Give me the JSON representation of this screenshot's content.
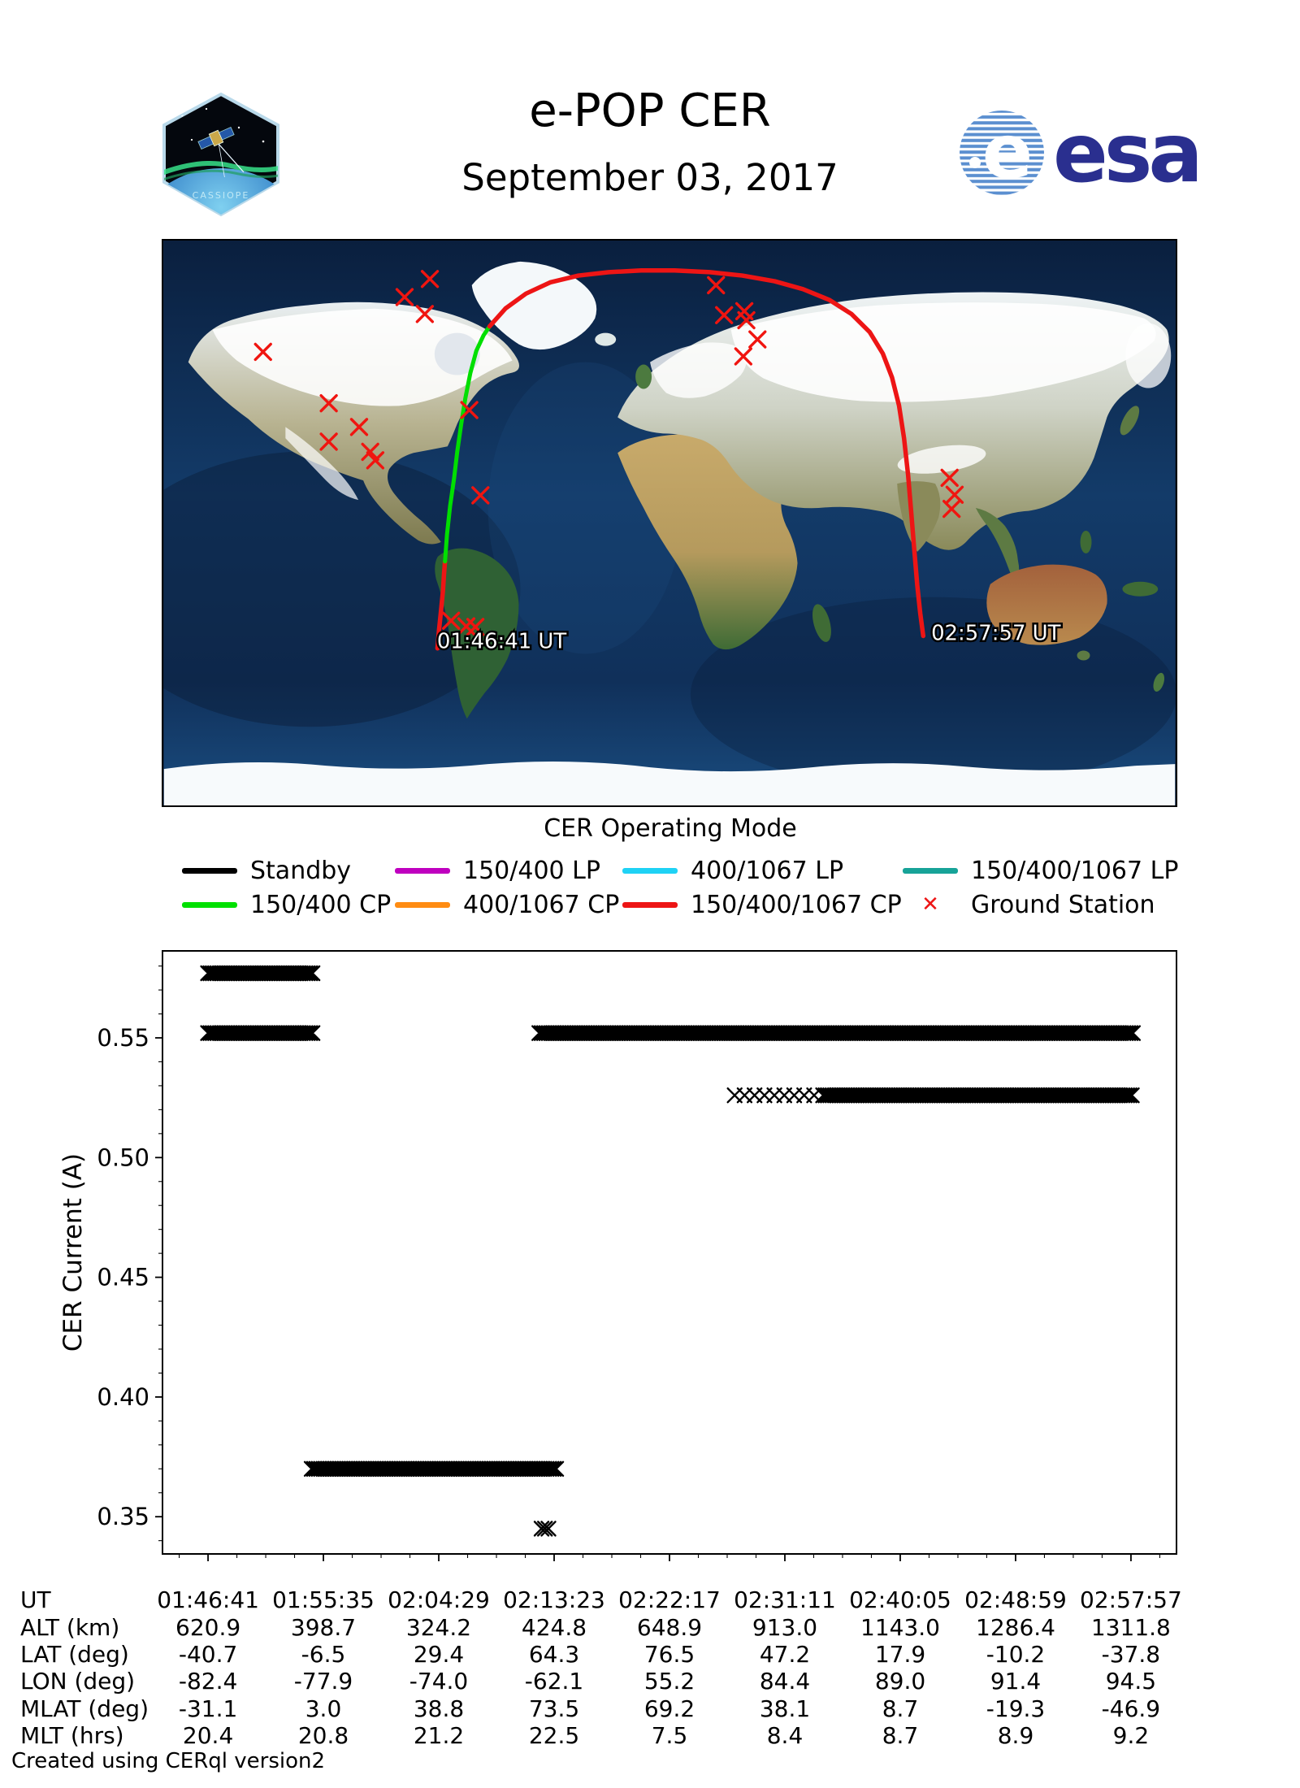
{
  "header": {
    "title": "e-POP CER",
    "subtitle": "September 03, 2017",
    "esa_wordmark": "esa",
    "patch_text": "CASSIOPE"
  },
  "map": {
    "start_label": "01:46:41 UT",
    "end_label": "02:57:57 UT",
    "station_color": "#f01510",
    "track_segments": [
      {
        "mode": "150/400/1067 CP",
        "color": "#ed1515",
        "width": 5.5,
        "points": [
          [
            0.2705,
            0.722
          ],
          [
            0.272,
            0.69
          ],
          [
            0.274,
            0.655
          ],
          [
            0.276,
            0.62
          ],
          [
            0.277,
            0.59
          ],
          [
            0.278,
            0.568
          ]
        ]
      },
      {
        "mode": "150/400 CP",
        "color": "#00df00",
        "width": 5,
        "points": [
          [
            0.278,
            0.568
          ],
          [
            0.28,
            0.52
          ],
          [
            0.283,
            0.47
          ],
          [
            0.287,
            0.42
          ],
          [
            0.29,
            0.375
          ],
          [
            0.294,
            0.325
          ],
          [
            0.298,
            0.28
          ],
          [
            0.303,
            0.235
          ],
          [
            0.309,
            0.195
          ],
          [
            0.316,
            0.168
          ],
          [
            0.322,
            0.152
          ]
        ]
      },
      {
        "mode": "150/400/1067 CP",
        "color": "#ed1515",
        "width": 5.5,
        "points": [
          [
            0.322,
            0.152
          ],
          [
            0.338,
            0.12
          ],
          [
            0.358,
            0.094
          ],
          [
            0.382,
            0.074
          ],
          [
            0.41,
            0.062
          ],
          [
            0.44,
            0.056
          ],
          [
            0.472,
            0.053
          ],
          [
            0.505,
            0.053
          ],
          [
            0.54,
            0.056
          ],
          [
            0.572,
            0.062
          ],
          [
            0.604,
            0.072
          ],
          [
            0.632,
            0.086
          ],
          [
            0.658,
            0.105
          ],
          [
            0.68,
            0.13
          ],
          [
            0.698,
            0.162
          ],
          [
            0.711,
            0.2
          ],
          [
            0.72,
            0.242
          ],
          [
            0.727,
            0.292
          ],
          [
            0.732,
            0.35
          ],
          [
            0.736,
            0.415
          ],
          [
            0.739,
            0.48
          ],
          [
            0.742,
            0.545
          ],
          [
            0.745,
            0.61
          ],
          [
            0.748,
            0.66
          ],
          [
            0.751,
            0.7
          ]
        ]
      }
    ],
    "ground_stations": [
      [
        0.263,
        0.068
      ],
      [
        0.238,
        0.1
      ],
      [
        0.258,
        0.13
      ],
      [
        0.098,
        0.197
      ],
      [
        0.163,
        0.288
      ],
      [
        0.193,
        0.33
      ],
      [
        0.163,
        0.356
      ],
      [
        0.204,
        0.374
      ],
      [
        0.209,
        0.389
      ],
      [
        0.302,
        0.3
      ],
      [
        0.313,
        0.451
      ],
      [
        0.284,
        0.673
      ],
      [
        0.299,
        0.683
      ],
      [
        0.308,
        0.684
      ],
      [
        0.546,
        0.079
      ],
      [
        0.554,
        0.132
      ],
      [
        0.574,
        0.125
      ],
      [
        0.576,
        0.141
      ],
      [
        0.587,
        0.175
      ],
      [
        0.573,
        0.205
      ],
      [
        0.777,
        0.42
      ],
      [
        0.782,
        0.45
      ],
      [
        0.779,
        0.475
      ]
    ]
  },
  "legend": {
    "title": "CER Operating Mode",
    "items": [
      {
        "label": "Standby",
        "color": "#000000",
        "type": "line"
      },
      {
        "label": "150/400 LP",
        "color": "#bf00bf",
        "type": "line"
      },
      {
        "label": "400/1067 LP",
        "color": "#1fd2f5",
        "type": "line"
      },
      {
        "label": "150/400/1067 LP",
        "color": "#17a398",
        "type": "line"
      },
      {
        "label": "150/400 CP",
        "color": "#00e000",
        "type": "line"
      },
      {
        "label": "400/1067 CP",
        "color": "#ff8c12",
        "type": "line"
      },
      {
        "label": "150/400/1067 CP",
        "color": "#ed1515",
        "type": "line"
      },
      {
        "label": "Ground Station",
        "color": "#ed1515",
        "type": "marker-x"
      }
    ]
  },
  "chart_data": {
    "type": "scatter",
    "marker": "x",
    "marker_color": "#000000",
    "ylabel": "CER Current (A)",
    "y_ticks": [
      0.35,
      0.4,
      0.45,
      0.5,
      0.55
    ],
    "ylim": [
      0.3345,
      0.5863
    ],
    "x_tick_labels": [
      "01:46:41",
      "01:55:35",
      "02:04:29",
      "02:13:23",
      "02:22:17",
      "02:31:11",
      "02:40:05",
      "02:48:59",
      "02:57:57"
    ],
    "x_span_seconds": 4276,
    "x_margin_seconds": 211,
    "grid": false,
    "bands": [
      {
        "y": 0.577,
        "t0": 0,
        "t1": 490,
        "step": 11,
        "note": "upper current, first pass"
      },
      {
        "y": 0.552,
        "t0": 0,
        "t1": 490,
        "step": 11,
        "note": "lower current, first pass"
      },
      {
        "y": 0.37,
        "t0": 480,
        "t1": 1615,
        "step": 11,
        "note": "150/400 CP interval"
      },
      {
        "y": 0.345,
        "t0": 1545,
        "t1": 1579,
        "step": 16,
        "note": "brief low cluster ~02:13"
      },
      {
        "y": 0.552,
        "t0": 1535,
        "t1": 4285,
        "step": 11,
        "note": "upper current, long pass"
      },
      {
        "y": 0.526,
        "t0": 2440,
        "t1": 2850,
        "step": 46,
        "note": "second current, sparse onset"
      },
      {
        "y": 0.526,
        "t0": 2850,
        "t1": 4285,
        "step": 11,
        "note": "second current, dense"
      }
    ]
  },
  "table": {
    "rows": [
      {
        "label": "UT",
        "values": [
          "01:46:41",
          "01:55:35",
          "02:04:29",
          "02:13:23",
          "02:22:17",
          "02:31:11",
          "02:40:05",
          "02:48:59",
          "02:57:57"
        ]
      },
      {
        "label": "ALT (km)",
        "values": [
          "620.9",
          "398.7",
          "324.2",
          "424.8",
          "648.9",
          "913.0",
          "1143.0",
          "1286.4",
          "1311.8"
        ]
      },
      {
        "label": "LAT (deg)",
        "values": [
          "-40.7",
          "-6.5",
          "29.4",
          "64.3",
          "76.5",
          "47.2",
          "17.9",
          "-10.2",
          "-37.8"
        ]
      },
      {
        "label": "LON (deg)",
        "values": [
          "-82.4",
          "-77.9",
          "-74.0",
          "-62.1",
          "55.2",
          "84.4",
          "89.0",
          "91.4",
          "94.5"
        ]
      },
      {
        "label": "MLAT (deg)",
        "values": [
          "-31.1",
          "3.0",
          "38.8",
          "73.5",
          "69.2",
          "38.1",
          "8.7",
          "-19.3",
          "-46.9"
        ]
      },
      {
        "label": "MLT (hrs)",
        "values": [
          "20.4",
          "20.8",
          "21.2",
          "22.5",
          "7.5",
          "8.4",
          "8.7",
          "8.9",
          "9.2"
        ]
      }
    ]
  },
  "footer": "Created using CERql version2"
}
